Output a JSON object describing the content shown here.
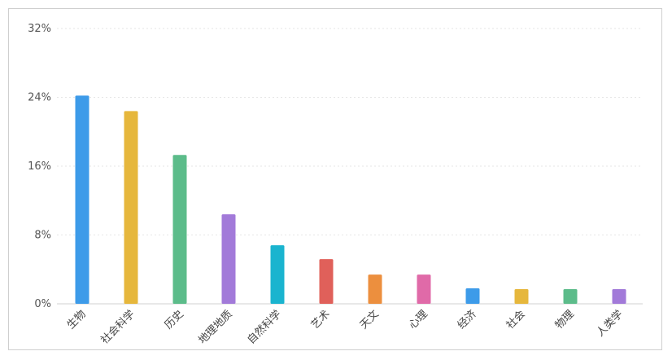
{
  "chart_data": {
    "type": "bar",
    "categories": [
      "生物",
      "社会科学",
      "历史",
      "地理地质",
      "自然科学",
      "艺术",
      "天文",
      "心理",
      "经济",
      "社会",
      "物理",
      "人类学"
    ],
    "values": [
      24.2,
      22.4,
      17.3,
      10.4,
      6.8,
      5.2,
      3.4,
      3.4,
      1.8,
      1.7,
      1.7,
      1.7
    ],
    "colors": [
      "#3d9be9",
      "#e6b73c",
      "#5cbc8a",
      "#a27ad9",
      "#1ab4cf",
      "#e0605a",
      "#ec8f3e",
      "#e06aa8",
      "#3d9be9",
      "#e6b73c",
      "#5cbc8a",
      "#a27ad9"
    ],
    "yticks": [
      "0%",
      "8%",
      "16%",
      "24%",
      "32%"
    ],
    "ylim": [
      0,
      32
    ],
    "title": "",
    "xlabel": "",
    "ylabel": "",
    "grid": true,
    "legend": "none"
  }
}
